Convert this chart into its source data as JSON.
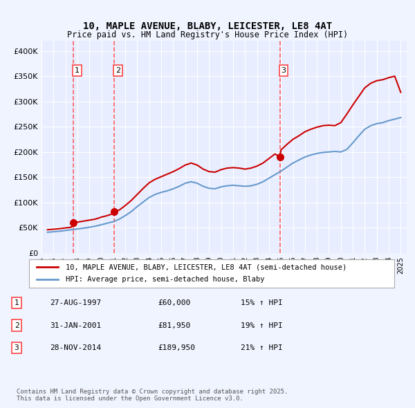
{
  "title": "10, MAPLE AVENUE, BLABY, LEICESTER, LE8 4AT",
  "subtitle": "Price paid vs. HM Land Registry's House Price Index (HPI)",
  "xlabel": "",
  "ylabel": "",
  "ylim": [
    0,
    420000
  ],
  "yticks": [
    0,
    50000,
    100000,
    150000,
    200000,
    250000,
    300000,
    350000,
    400000
  ],
  "ytick_labels": [
    "£0",
    "£50K",
    "£100K",
    "£150K",
    "£200K",
    "£250K",
    "£300K",
    "£350K",
    "£400K"
  ],
  "background_color": "#f0f4ff",
  "plot_bg_color": "#e8eeff",
  "grid_color": "#ffffff",
  "sale_dates": [
    1997.66,
    2001.08,
    2014.91
  ],
  "sale_prices": [
    60000,
    81950,
    189950
  ],
  "sale_labels": [
    "1",
    "2",
    "3"
  ],
  "red_line_color": "#cc0000",
  "blue_line_color": "#6699cc",
  "dashed_line_color": "#ff4444",
  "legend_label_red": "10, MAPLE AVENUE, BLABY, LEICESTER, LE8 4AT (semi-detached house)",
  "legend_label_blue": "HPI: Average price, semi-detached house, Blaby",
  "table_rows": [
    [
      "1",
      "27-AUG-1997",
      "£60,000",
      "15% ↑ HPI"
    ],
    [
      "2",
      "31-JAN-2001",
      "£81,950",
      "19% ↑ HPI"
    ],
    [
      "3",
      "28-NOV-2014",
      "£189,950",
      "21% ↑ HPI"
    ]
  ],
  "footer_text": "Contains HM Land Registry data © Crown copyright and database right 2025.\nThis data is licensed under the Open Government Licence v3.0.",
  "hpi_years": [
    1995.5,
    1996.0,
    1996.5,
    1997.0,
    1997.5,
    1998.0,
    1998.5,
    1999.0,
    1999.5,
    2000.0,
    2000.5,
    2001.0,
    2001.5,
    2002.0,
    2002.5,
    2003.0,
    2003.5,
    2004.0,
    2004.5,
    2005.0,
    2005.5,
    2006.0,
    2006.5,
    2007.0,
    2007.5,
    2008.0,
    2008.5,
    2009.0,
    2009.5,
    2010.0,
    2010.5,
    2011.0,
    2011.5,
    2012.0,
    2012.5,
    2013.0,
    2013.5,
    2014.0,
    2014.5,
    2015.0,
    2015.5,
    2016.0,
    2016.5,
    2017.0,
    2017.5,
    2018.0,
    2018.5,
    2019.0,
    2019.5,
    2020.0,
    2020.5,
    2021.0,
    2021.5,
    2022.0,
    2022.5,
    2023.0,
    2023.5,
    2024.0,
    2024.5,
    2025.0
  ],
  "hpi_values": [
    41000,
    42000,
    43000,
    44500,
    46000,
    47500,
    49000,
    51000,
    53000,
    56000,
    59000,
    62000,
    67000,
    74000,
    82000,
    92000,
    101000,
    110000,
    116000,
    120000,
    123000,
    127000,
    132000,
    138000,
    141000,
    138000,
    132000,
    128000,
    127000,
    131000,
    133000,
    134000,
    133000,
    132000,
    133000,
    136000,
    141000,
    148000,
    155000,
    162000,
    170000,
    178000,
    184000,
    190000,
    194000,
    197000,
    199000,
    200000,
    201000,
    200000,
    205000,
    218000,
    232000,
    245000,
    252000,
    256000,
    258000,
    262000,
    265000,
    268000
  ],
  "red_years": [
    1995.5,
    1996.0,
    1996.5,
    1997.0,
    1997.5,
    1997.66,
    1998.0,
    1998.5,
    1999.0,
    1999.5,
    2000.0,
    2000.5,
    2001.0,
    2001.08,
    2001.5,
    2002.0,
    2002.5,
    2003.0,
    2003.5,
    2004.0,
    2004.5,
    2005.0,
    2005.5,
    2006.0,
    2006.5,
    2007.0,
    2007.5,
    2008.0,
    2008.5,
    2009.0,
    2009.5,
    2010.0,
    2010.5,
    2011.0,
    2011.5,
    2012.0,
    2012.5,
    2013.0,
    2013.5,
    2014.0,
    2014.5,
    2014.91,
    2015.0,
    2015.5,
    2016.0,
    2016.5,
    2017.0,
    2017.5,
    2018.0,
    2018.5,
    2019.0,
    2019.5,
    2020.0,
    2020.5,
    2021.0,
    2021.5,
    2022.0,
    2022.5,
    2023.0,
    2023.5,
    2024.0,
    2024.5,
    2025.0
  ],
  "red_values": [
    46000,
    47000,
    48000,
    49500,
    51000,
    60000,
    61000,
    63000,
    65000,
    67000,
    71000,
    74000,
    78000,
    81950,
    85000,
    94000,
    104000,
    116000,
    128000,
    139000,
    146000,
    151000,
    156000,
    161000,
    167000,
    174000,
    178000,
    174000,
    166000,
    161000,
    160000,
    165000,
    168000,
    169000,
    168000,
    166000,
    168000,
    172000,
    178000,
    187000,
    196000,
    189950,
    204000,
    215000,
    225000,
    232000,
    240000,
    245000,
    249000,
    252000,
    253000,
    252000,
    258000,
    275000,
    293000,
    310000,
    327000,
    336000,
    341000,
    343000,
    347000,
    350000,
    318000
  ]
}
